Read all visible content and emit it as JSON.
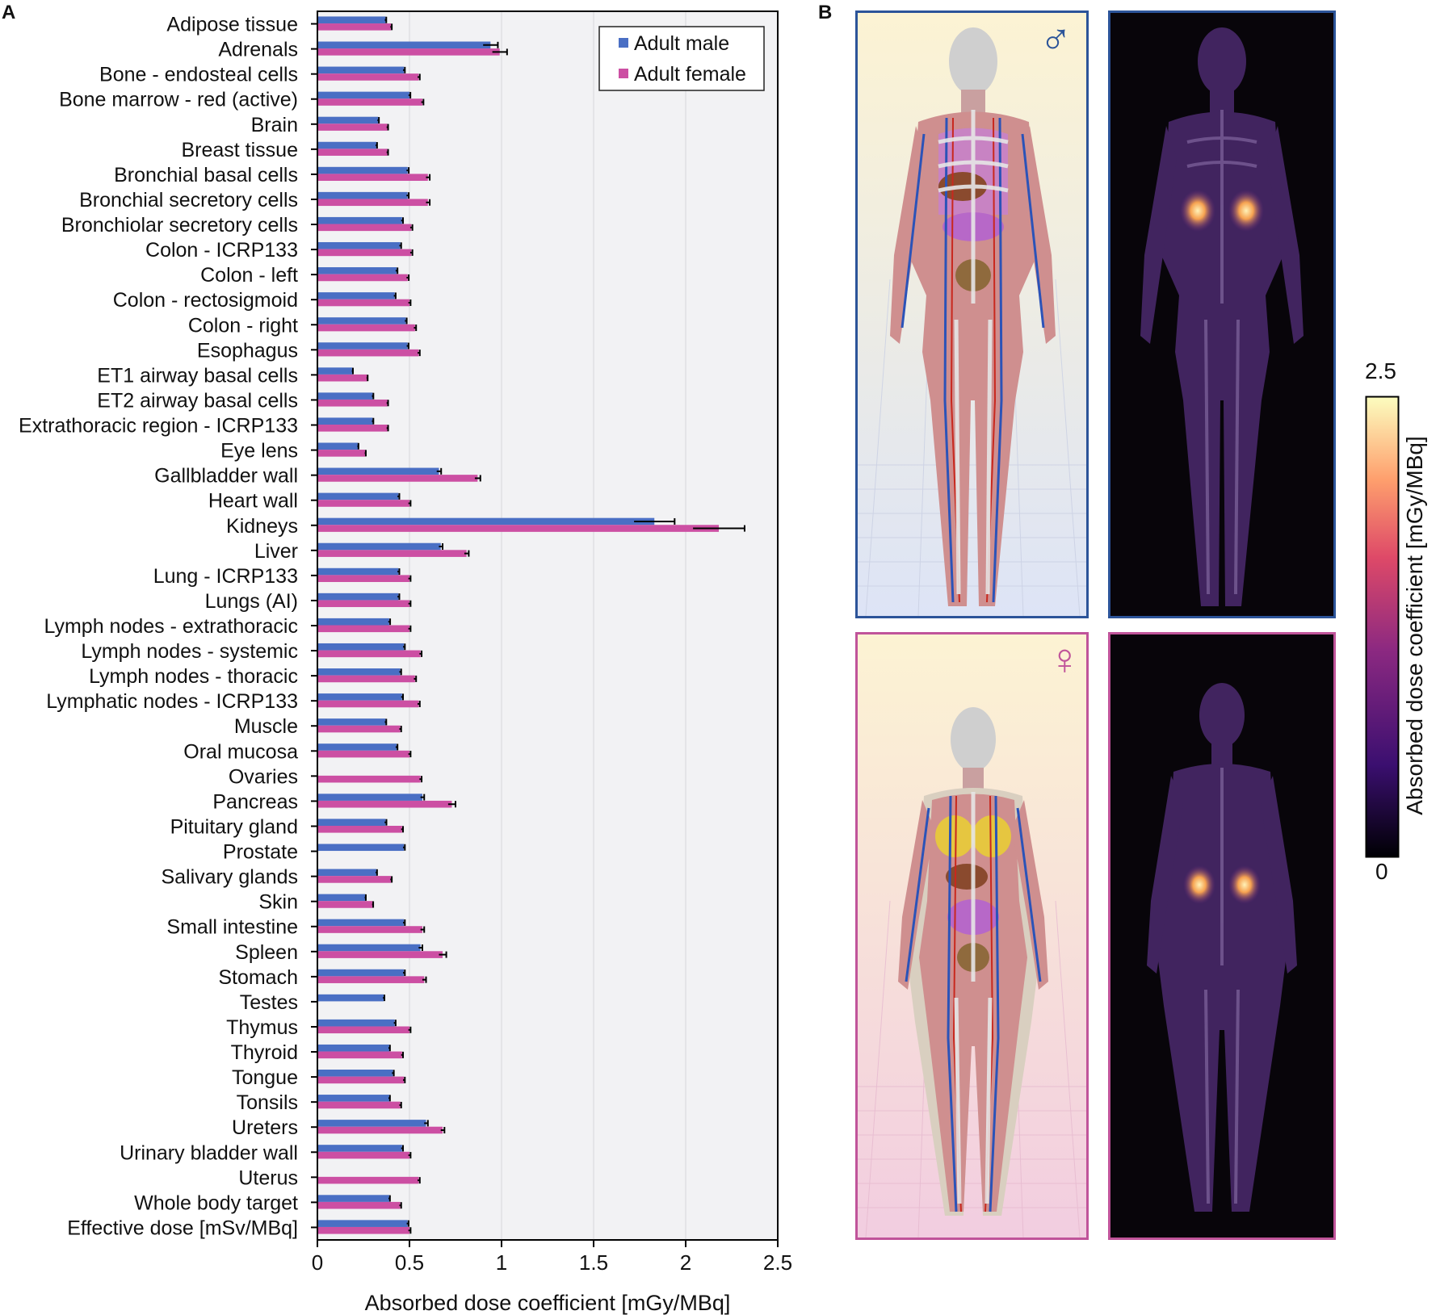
{
  "panels": {
    "a": "A",
    "b": "B"
  },
  "colors": {
    "male": "#4a6fc4",
    "female": "#cc4fa3",
    "male_frame": "#2c5499",
    "female_frame": "#c0549a",
    "plot_bg": "#f2f2f4"
  },
  "chart_data": {
    "type": "bar",
    "orientation": "horizontal",
    "xlabel": "Absorbed dose coefficient [mGy/MBq]",
    "xlim": [
      0,
      2.5
    ],
    "xticks": [
      "0",
      "0.5",
      "1",
      "1.5",
      "2",
      "2.5"
    ],
    "grid": "vertical",
    "legend": "top-right",
    "categories": [
      "Adipose tissue",
      "Adrenals",
      "Bone - endosteal cells",
      "Bone marrow - red (active)",
      "Brain",
      "Breast tissue",
      "Bronchial basal cells",
      "Bronchial secretory cells",
      "Bronchiolar secretory cells",
      "Colon - ICRP133",
      "Colon - left",
      "Colon - rectosigmoid",
      "Colon - right",
      "Esophagus",
      "ET1 airway basal cells",
      "ET2 airway basal cells",
      "Extrathoracic region - ICRP133",
      "Eye lens",
      "Gallbladder wall",
      "Heart wall",
      "Kidneys",
      "Liver",
      "Lung - ICRP133",
      "Lungs (AI)",
      "Lymph nodes - extrathoracic",
      "Lymph nodes - systemic",
      "Lymph nodes - thoracic",
      "Lymphatic nodes - ICRP133",
      "Muscle",
      "Oral mucosa",
      "Ovaries",
      "Pancreas",
      "Pituitary gland",
      "Prostate",
      "Salivary glands",
      "Skin",
      "Small intestine",
      "Spleen",
      "Stomach",
      "Testes",
      "Thymus",
      "Thyroid",
      "Tongue",
      "Tonsils",
      "Ureters",
      "Urinary bladder wall",
      "Uterus",
      "Whole body target",
      "Effective dose [mSv/MBq]"
    ],
    "series": [
      {
        "name": "Adult male",
        "values": [
          0.37,
          0.94,
          0.47,
          0.5,
          0.33,
          0.32,
          0.49,
          0.49,
          0.46,
          0.45,
          0.43,
          0.42,
          0.48,
          0.49,
          0.19,
          0.3,
          0.3,
          0.22,
          0.66,
          0.44,
          1.83,
          0.67,
          0.44,
          0.44,
          0.39,
          0.47,
          0.45,
          0.46,
          0.37,
          0.43,
          null,
          0.57,
          0.37,
          0.47,
          0.32,
          0.26,
          0.47,
          0.56,
          0.47,
          0.36,
          0.42,
          0.39,
          0.41,
          0.39,
          0.59,
          0.46,
          null,
          0.39,
          0.49
        ],
        "errors": [
          0.004,
          0.04,
          0.005,
          0.005,
          0.004,
          0.004,
          0.006,
          0.006,
          0.005,
          0.005,
          0.005,
          0.005,
          0.005,
          0.005,
          0.003,
          0.004,
          0.004,
          0.003,
          0.012,
          0.005,
          0.11,
          0.01,
          0.005,
          0.005,
          0.005,
          0.005,
          0.005,
          0.005,
          0.004,
          0.005,
          null,
          0.01,
          0.005,
          0.005,
          0.004,
          0.003,
          0.005,
          0.01,
          0.005,
          0.004,
          0.005,
          0.004,
          0.005,
          0.004,
          0.01,
          0.005,
          null,
          0.004,
          0.005
        ]
      },
      {
        "name": "Adult female",
        "values": [
          0.4,
          0.99,
          0.55,
          0.57,
          0.38,
          0.38,
          0.6,
          0.6,
          0.51,
          0.51,
          0.49,
          0.5,
          0.53,
          0.55,
          0.27,
          0.38,
          0.38,
          0.26,
          0.87,
          0.5,
          2.18,
          0.81,
          0.5,
          0.5,
          0.5,
          0.56,
          0.53,
          0.55,
          0.45,
          0.5,
          0.56,
          0.73,
          0.46,
          null,
          0.4,
          0.3,
          0.57,
          0.68,
          0.58,
          null,
          0.5,
          0.46,
          0.47,
          0.45,
          0.68,
          0.5,
          0.55,
          0.45,
          0.5
        ],
        "errors": [
          0.004,
          0.04,
          0.006,
          0.006,
          0.004,
          0.004,
          0.01,
          0.01,
          0.006,
          0.006,
          0.006,
          0.006,
          0.006,
          0.006,
          0.003,
          0.004,
          0.004,
          0.003,
          0.015,
          0.006,
          0.14,
          0.012,
          0.006,
          0.006,
          0.006,
          0.006,
          0.006,
          0.006,
          0.005,
          0.006,
          0.006,
          0.02,
          0.005,
          null,
          0.004,
          0.003,
          0.01,
          0.02,
          0.01,
          null,
          0.006,
          0.005,
          0.005,
          0.005,
          0.01,
          0.006,
          0.006,
          0.005,
          0.006
        ]
      }
    ]
  },
  "figure_b": {
    "male_symbol": "♂",
    "female_symbol": "♀",
    "colorbar": {
      "title": "Absorbed dose coefficient [mGy/MBq]",
      "max_label": "2.5",
      "min_label": "0"
    }
  }
}
